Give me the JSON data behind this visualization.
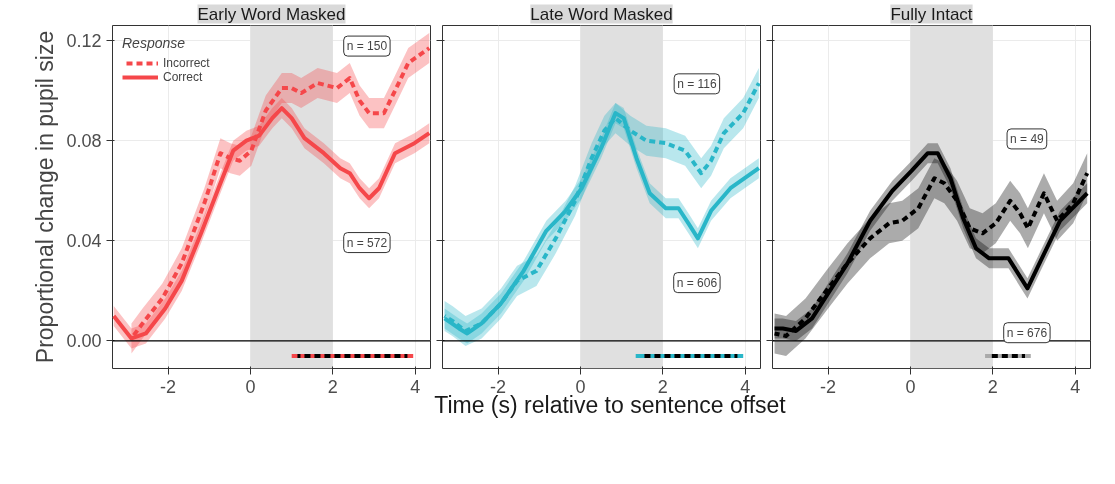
{
  "chart_data": [
    {
      "type": "line",
      "title": "Early Word Masked",
      "ylabel": "Proportional change in pupil size",
      "legend_title": "Response",
      "legend": "top left",
      "grid": true,
      "xlim": [
        -3.35,
        4.37
      ],
      "ylim": [
        -0.011,
        0.126
      ],
      "xticks": [
        -2,
        0,
        2,
        4
      ],
      "yticks": [
        {
          "value": 0,
          "label": "0.00"
        },
        {
          "value": 0.04,
          "label": "0.04"
        },
        {
          "value": 0.08,
          "label": "0.08"
        },
        {
          "value": 0.12,
          "label": "0.12"
        }
      ],
      "bands": [
        {
          "axis": "x",
          "from": 0,
          "to": 2,
          "color": "#e0e0e0"
        }
      ],
      "ref_lines": [
        {
          "axis": "y",
          "value": 0,
          "color": "#000000"
        }
      ],
      "annotations": [
        "n = 150",
        "n = 572"
      ],
      "series": [
        {
          "name": "Incorrect",
          "color": "#f5474a",
          "line_style": "dashed",
          "x": [
            -2.89,
            -2.62,
            -2.14,
            -1.67,
            -1.12,
            -0.73,
            -0.49,
            -0.26,
            0.02,
            0.37,
            0.76,
            1.0,
            1.23,
            1.63,
            2.1,
            2.41,
            2.65,
            2.88,
            3.24,
            3.51,
            3.83,
            4.34
          ],
          "values": [
            0.001,
            0.007,
            0.017,
            0.031,
            0.055,
            0.075,
            0.073,
            0.072,
            0.076,
            0.092,
            0.101,
            0.101,
            0.099,
            0.103,
            0.101,
            0.105,
            0.096,
            0.091,
            0.091,
            0.1,
            0.111,
            0.117
          ],
          "lower": [
            -0.005,
            0.001,
            0.011,
            0.025,
            0.049,
            0.069,
            0.067,
            0.066,
            0.07,
            0.086,
            0.095,
            0.095,
            0.093,
            0.097,
            0.095,
            0.099,
            0.09,
            0.085,
            0.085,
            0.094,
            0.105,
            0.111
          ],
          "upper": [
            0.007,
            0.013,
            0.023,
            0.037,
            0.061,
            0.081,
            0.079,
            0.078,
            0.082,
            0.098,
            0.107,
            0.107,
            0.105,
            0.109,
            0.107,
            0.111,
            0.102,
            0.097,
            0.097,
            0.106,
            0.117,
            0.123
          ]
        },
        {
          "name": "Correct",
          "color": "#f5474a",
          "line_style": "solid",
          "x": [
            -3.32,
            -2.89,
            -2.54,
            -2.07,
            -1.67,
            -1.2,
            -0.73,
            -0.42,
            -0.1,
            0.21,
            0.53,
            0.76,
            1.0,
            1.31,
            1.78,
            2.18,
            2.41,
            2.65,
            2.88,
            3.12,
            3.51,
            3.98,
            4.34
          ],
          "values": [
            0.01,
            0.001,
            0.003,
            0.013,
            0.024,
            0.043,
            0.063,
            0.076,
            0.08,
            0.082,
            0.089,
            0.093,
            0.089,
            0.081,
            0.075,
            0.069,
            0.067,
            0.061,
            0.057,
            0.061,
            0.075,
            0.079,
            0.083
          ],
          "lower": [
            0.006,
            -0.003,
            -0.001,
            0.009,
            0.02,
            0.039,
            0.059,
            0.072,
            0.076,
            0.078,
            0.085,
            0.089,
            0.085,
            0.077,
            0.071,
            0.065,
            0.063,
            0.057,
            0.053,
            0.057,
            0.071,
            0.075,
            0.079
          ],
          "upper": [
            0.014,
            0.005,
            0.007,
            0.017,
            0.028,
            0.047,
            0.067,
            0.08,
            0.084,
            0.086,
            0.093,
            0.097,
            0.093,
            0.085,
            0.079,
            0.073,
            0.071,
            0.065,
            0.061,
            0.065,
            0.079,
            0.083,
            0.087
          ]
        },
        {
          "color": "#f5474a",
          "line_style": "solid",
          "x": [
            1.0,
            3.95
          ],
          "values": [
            -0.006,
            -0.006
          ]
        },
        {
          "color": "#000000",
          "line_style": "dashed",
          "x": [
            1.14,
            3.81
          ],
          "values": [
            -0.006,
            -0.006
          ]
        }
      ]
    },
    {
      "type": "line",
      "title": "Late Word Masked",
      "xlabel": "Time (s) relative to sentence offset",
      "grid": true,
      "tick_labels": "x",
      "xlim": [
        -3.35,
        4.37
      ],
      "ylim": [
        -0.011,
        0.126
      ],
      "xticks": [
        -2,
        0,
        2,
        4
      ],
      "yticks": [
        0,
        0.04,
        0.08,
        0.12
      ],
      "bands": [
        {
          "axis": "x",
          "from": 0,
          "to": 2,
          "color": "#e0e0e0"
        }
      ],
      "ref_lines": [
        {
          "axis": "y",
          "value": 0,
          "color": "#000000"
        }
      ],
      "annotations": [
        "n = 116",
        "n = 606"
      ],
      "series": [
        {
          "color": "#29b6c8",
          "line_style": "dashed",
          "x": [
            -3.3,
            -3.11,
            -2.79,
            -2.4,
            -1.93,
            -1.54,
            -1.07,
            -0.6,
            -0.13,
            0.27,
            0.58,
            0.85,
            1.21,
            1.6,
            2.07,
            2.54,
            2.93,
            3.17,
            3.48,
            3.95,
            4.33
          ],
          "values": [
            0.01,
            0.008,
            0.004,
            0.007,
            0.015,
            0.024,
            0.028,
            0.041,
            0.056,
            0.073,
            0.084,
            0.089,
            0.084,
            0.08,
            0.079,
            0.076,
            0.067,
            0.072,
            0.083,
            0.091,
            0.103
          ],
          "lower": [
            0.004,
            0.002,
            -0.002,
            0.001,
            0.009,
            0.018,
            0.022,
            0.035,
            0.05,
            0.067,
            0.078,
            0.083,
            0.078,
            0.074,
            0.073,
            0.07,
            0.061,
            0.066,
            0.077,
            0.085,
            0.097
          ],
          "upper": [
            0.016,
            0.014,
            0.01,
            0.013,
            0.021,
            0.03,
            0.034,
            0.047,
            0.062,
            0.079,
            0.09,
            0.095,
            0.09,
            0.086,
            0.085,
            0.082,
            0.073,
            0.078,
            0.089,
            0.097,
            0.109
          ]
        },
        {
          "color": "#29b6c8",
          "line_style": "solid",
          "x": [
            -3.3,
            -2.95,
            -2.75,
            -2.4,
            -1.93,
            -1.38,
            -0.83,
            -0.36,
            0.03,
            0.5,
            0.85,
            1.05,
            1.36,
            1.68,
            2.07,
            2.38,
            2.62,
            2.85,
            3.17,
            3.64,
            4.33
          ],
          "values": [
            0.009,
            0.005,
            0.003,
            0.007,
            0.015,
            0.028,
            0.044,
            0.052,
            0.061,
            0.077,
            0.091,
            0.089,
            0.073,
            0.059,
            0.053,
            0.053,
            0.047,
            0.041,
            0.052,
            0.061,
            0.069
          ],
          "lower": [
            0.005,
            0.001,
            -0.001,
            0.003,
            0.011,
            0.024,
            0.04,
            0.048,
            0.057,
            0.073,
            0.087,
            0.085,
            0.069,
            0.055,
            0.049,
            0.049,
            0.043,
            0.037,
            0.048,
            0.057,
            0.065
          ],
          "upper": [
            0.013,
            0.009,
            0.007,
            0.011,
            0.019,
            0.032,
            0.048,
            0.056,
            0.065,
            0.081,
            0.095,
            0.093,
            0.077,
            0.063,
            0.057,
            0.057,
            0.051,
            0.045,
            0.056,
            0.065,
            0.073
          ]
        },
        {
          "color": "#29b6c8",
          "line_style": "solid",
          "x": [
            1.34,
            3.95
          ],
          "values": [
            -0.006,
            -0.006
          ]
        },
        {
          "color": "#000000",
          "line_style": "dashed",
          "x": [
            1.48,
            3.81
          ],
          "values": [
            -0.006,
            -0.006
          ]
        }
      ]
    },
    {
      "type": "line",
      "title": "Fully Intact",
      "grid": true,
      "tick_labels": "x",
      "xlim": [
        -3.35,
        4.37
      ],
      "ylim": [
        -0.011,
        0.126
      ],
      "xticks": [
        -2,
        0,
        2,
        4
      ],
      "yticks": [
        0,
        0.04,
        0.08,
        0.12
      ],
      "bands": [
        {
          "axis": "x",
          "from": 0,
          "to": 2,
          "color": "#e0e0e0"
        }
      ],
      "ref_lines": [
        {
          "axis": "y",
          "value": 0,
          "color": "#000000"
        }
      ],
      "annotations": [
        "n = 49",
        "n = 676"
      ],
      "series": [
        {
          "color": "#000000",
          "line_style": "dashed",
          "x": [
            -3.3,
            -3.02,
            -2.55,
            -2.0,
            -1.53,
            -0.98,
            -0.52,
            -0.2,
            0.19,
            0.58,
            0.82,
            1.13,
            1.44,
            1.75,
            2.07,
            2.42,
            2.66,
            2.85,
            3.24,
            3.56,
            3.95,
            4.29
          ],
          "values": [
            0.003,
            0.002,
            0.009,
            0.021,
            0.031,
            0.041,
            0.047,
            0.048,
            0.053,
            0.065,
            0.063,
            0.056,
            0.045,
            0.043,
            0.047,
            0.056,
            0.051,
            0.045,
            0.059,
            0.048,
            0.055,
            0.067
          ],
          "lower": [
            -0.005,
            -0.006,
            0.001,
            0.013,
            0.023,
            0.033,
            0.039,
            0.04,
            0.045,
            0.057,
            0.055,
            0.048,
            0.037,
            0.035,
            0.039,
            0.048,
            0.043,
            0.037,
            0.051,
            0.04,
            0.047,
            0.059
          ],
          "upper": [
            0.011,
            0.01,
            0.017,
            0.029,
            0.039,
            0.049,
            0.055,
            0.056,
            0.061,
            0.073,
            0.071,
            0.064,
            0.053,
            0.051,
            0.055,
            0.064,
            0.059,
            0.053,
            0.067,
            0.056,
            0.063,
            0.075
          ]
        },
        {
          "color": "#000000",
          "line_style": "solid",
          "x": [
            -3.3,
            -3.1,
            -2.78,
            -2.39,
            -2.0,
            -1.53,
            -0.98,
            -0.44,
            0.03,
            0.42,
            0.66,
            0.97,
            1.28,
            1.59,
            1.91,
            2.38,
            2.61,
            2.84,
            3.16,
            3.63,
            4.29
          ],
          "values": [
            0.005,
            0.005,
            0.004,
            0.009,
            0.019,
            0.031,
            0.048,
            0.06,
            0.068,
            0.075,
            0.075,
            0.065,
            0.049,
            0.037,
            0.033,
            0.033,
            0.027,
            0.021,
            0.032,
            0.048,
            0.059
          ],
          "lower": [
            0.001,
            0.001,
            0.0,
            0.005,
            0.015,
            0.027,
            0.044,
            0.056,
            0.064,
            0.071,
            0.071,
            0.061,
            0.045,
            0.033,
            0.029,
            0.029,
            0.023,
            0.017,
            0.028,
            0.044,
            0.055
          ],
          "upper": [
            0.009,
            0.009,
            0.008,
            0.013,
            0.023,
            0.035,
            0.052,
            0.064,
            0.072,
            0.079,
            0.079,
            0.069,
            0.053,
            0.041,
            0.037,
            0.037,
            0.031,
            0.025,
            0.036,
            0.052,
            0.063
          ]
        },
        {
          "color": "#aaaaaa",
          "line_style": "solid",
          "x": [
            1.81,
            2.92
          ],
          "values": [
            -0.006,
            -0.006
          ]
        },
        {
          "color": "#000000",
          "line_style": "dashed",
          "x": [
            1.95,
            2.78
          ],
          "values": [
            -0.006,
            -0.006
          ]
        }
      ]
    }
  ]
}
